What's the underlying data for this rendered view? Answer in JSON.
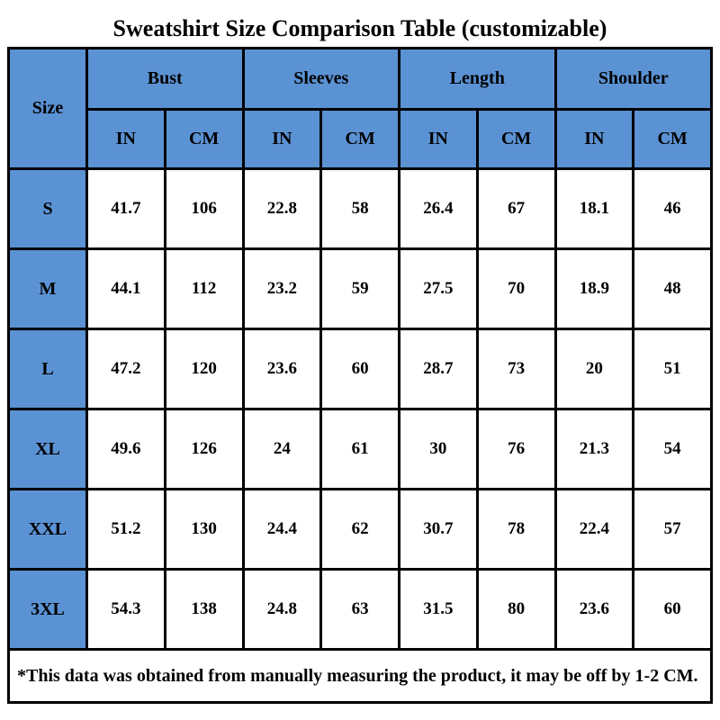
{
  "title": "Sweatshirt Size Comparison Table (customizable)",
  "colors": {
    "header_blue": "#5B92D3",
    "border": "#000000",
    "background": "#FFFFFF",
    "text": "#000000"
  },
  "chart_data": {
    "type": "table",
    "title": "Sweatshirt Size Comparison Table (customizable)",
    "size_column_header": "Size",
    "measure_groups": [
      "Bust",
      "Sleeves",
      "Length",
      "Shoulder"
    ],
    "unit_labels": [
      "IN",
      "CM"
    ],
    "columns": [
      "Size",
      "Bust IN",
      "Bust CM",
      "Sleeves IN",
      "Sleeves CM",
      "Length IN",
      "Length CM",
      "Shoulder IN",
      "Shoulder CM"
    ],
    "rows": [
      {
        "size": "S",
        "values": [
          "41.7",
          "106",
          "22.8",
          "58",
          "26.4",
          "67",
          "18.1",
          "46"
        ]
      },
      {
        "size": "M",
        "values": [
          "44.1",
          "112",
          "23.2",
          "59",
          "27.5",
          "70",
          "18.9",
          "48"
        ]
      },
      {
        "size": "L",
        "values": [
          "47.2",
          "120",
          "23.6",
          "60",
          "28.7",
          "73",
          "20",
          "51"
        ]
      },
      {
        "size": "XL",
        "values": [
          "49.6",
          "126",
          "24",
          "61",
          "30",
          "76",
          "21.3",
          "54"
        ]
      },
      {
        "size": "XXL",
        "values": [
          "51.2",
          "130",
          "24.4",
          "62",
          "30.7",
          "78",
          "22.4",
          "57"
        ]
      },
      {
        "size": "3XL",
        "values": [
          "54.3",
          "138",
          "24.8",
          "63",
          "31.5",
          "80",
          "23.6",
          "60"
        ]
      }
    ],
    "footnote": "*This data was obtained from manually measuring the product, it may be off by 1-2 CM."
  }
}
